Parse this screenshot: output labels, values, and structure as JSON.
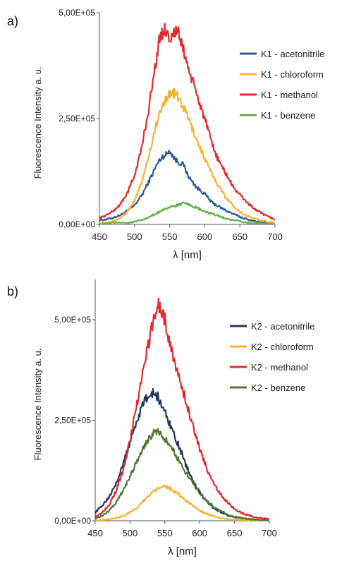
{
  "panels": [
    {
      "label": "a)"
    },
    {
      "label": "b)"
    }
  ],
  "chart_data": [
    {
      "type": "line",
      "title": "",
      "xlabel": "λ [nm]",
      "ylabel": "Fluorescence Intensity a. u.",
      "xlim": [
        450,
        700
      ],
      "ylim": [
        0,
        500000
      ],
      "x_ticks": [
        450,
        500,
        550,
        600,
        650,
        700
      ],
      "y_ticks": [
        "0,00E+00",
        "2,50E+05",
        "5,00E+05"
      ],
      "y_tick_values": [
        0,
        250000,
        500000
      ],
      "grid": false,
      "legend_position": "top-right",
      "series": [
        {
          "name": "K1 - acetonitrile",
          "color": "#2e5c93",
          "x": [
            450,
            460,
            470,
            480,
            490,
            500,
            510,
            520,
            530,
            535,
            540,
            545,
            550,
            555,
            560,
            565,
            570,
            575,
            580,
            590,
            600,
            610,
            620,
            630,
            640,
            650,
            660,
            670,
            680,
            690,
            700
          ],
          "y": [
            10000,
            12000,
            16000,
            22000,
            32000,
            45000,
            68000,
            100000,
            135000,
            150000,
            160000,
            165000,
            175000,
            160000,
            150000,
            145000,
            140000,
            120000,
            105000,
            85000,
            72000,
            52000,
            42000,
            33000,
            25000,
            18000,
            12000,
            8000,
            5000,
            3000,
            2000
          ]
        },
        {
          "name": "K1 - chloroform",
          "color": "#f5b533",
          "x": [
            450,
            460,
            470,
            480,
            490,
            500,
            510,
            520,
            530,
            540,
            545,
            550,
            555,
            560,
            565,
            570,
            575,
            580,
            590,
            600,
            610,
            620,
            630,
            640,
            650,
            660,
            670,
            680,
            690,
            700
          ],
          "y": [
            3000,
            5000,
            8000,
            15000,
            30000,
            55000,
            100000,
            160000,
            230000,
            280000,
            300000,
            308000,
            310000,
            305000,
            290000,
            275000,
            260000,
            235000,
            195000,
            155000,
            120000,
            90000,
            65000,
            45000,
            30000,
            20000,
            14000,
            9000,
            6000,
            4000
          ]
        },
        {
          "name": "K1 - methanol",
          "color": "#e32b2b",
          "x": [
            450,
            460,
            470,
            480,
            490,
            500,
            510,
            520,
            530,
            535,
            540,
            545,
            550,
            555,
            560,
            565,
            570,
            575,
            580,
            590,
            600,
            610,
            620,
            630,
            640,
            650,
            660,
            670,
            680,
            690,
            700
          ],
          "y": [
            15000,
            22000,
            32000,
            48000,
            75000,
            115000,
            180000,
            270000,
            380000,
            430000,
            455000,
            460000,
            440000,
            450000,
            458000,
            440000,
            410000,
            380000,
            350000,
            300000,
            250000,
            190000,
            150000,
            120000,
            90000,
            70000,
            52000,
            38000,
            27000,
            18000,
            12000
          ]
        },
        {
          "name": "K1 - benzene",
          "color": "#64b04a",
          "x": [
            450,
            460,
            470,
            480,
            490,
            500,
            510,
            520,
            530,
            540,
            550,
            560,
            570,
            580,
            590,
            600,
            610,
            620,
            630,
            640,
            650,
            660,
            670,
            680,
            690,
            700
          ],
          "y": [
            0,
            2000,
            4000,
            5000,
            3000,
            6000,
            10000,
            16000,
            25000,
            35000,
            40000,
            45000,
            50000,
            45000,
            38000,
            30000,
            25000,
            20000,
            14000,
            10000,
            7000,
            4000,
            3000,
            2000,
            1000,
            0
          ]
        }
      ]
    },
    {
      "type": "line",
      "title": "",
      "xlabel": "λ [nm]",
      "ylabel": "Fluorescence Intensity a. u.",
      "xlim": [
        450,
        700
      ],
      "ylim": [
        0,
        600000
      ],
      "x_ticks": [
        450,
        500,
        550,
        600,
        650,
        700
      ],
      "y_ticks": [
        "0,00E+00",
        "2,50E+05",
        "5,00E+05"
      ],
      "y_tick_values": [
        0,
        250000,
        500000
      ],
      "grid": false,
      "legend_position": "top-right",
      "series": [
        {
          "name": "K2 - acetonitrile",
          "color": "#1f3864",
          "x": [
            450,
            460,
            470,
            480,
            490,
            500,
            510,
            520,
            530,
            535,
            540,
            545,
            550,
            560,
            570,
            580,
            590,
            600,
            610,
            620,
            630,
            640,
            650,
            660,
            670,
            680,
            690,
            700
          ],
          "y": [
            20000,
            38000,
            60000,
            95000,
            140000,
            195000,
            250000,
            295000,
            318000,
            318000,
            308000,
            290000,
            270000,
            230000,
            185000,
            140000,
            100000,
            70000,
            48000,
            32000,
            22000,
            14000,
            9000,
            6000,
            4000,
            3000,
            2000,
            1000
          ]
        },
        {
          "name": "K2 - chloroform",
          "color": "#f5b533",
          "x": [
            450,
            460,
            470,
            480,
            490,
            500,
            510,
            520,
            530,
            540,
            545,
            550,
            560,
            570,
            580,
            590,
            600,
            610,
            620,
            630,
            640,
            650,
            660,
            670,
            680,
            690,
            700
          ],
          "y": [
            1000,
            2000,
            4000,
            7000,
            12000,
            20000,
            32000,
            50000,
            68000,
            82000,
            87000,
            85000,
            78000,
            65000,
            50000,
            38000,
            26000,
            17000,
            11000,
            7000,
            4000,
            2500,
            1500,
            1000,
            600,
            300,
            200
          ]
        },
        {
          "name": "K2 - methanol",
          "color": "#e32b2b",
          "x": [
            450,
            460,
            470,
            480,
            490,
            500,
            510,
            520,
            530,
            535,
            540,
            545,
            550,
            555,
            560,
            565,
            570,
            580,
            590,
            600,
            610,
            620,
            630,
            640,
            650,
            660,
            670,
            680,
            690,
            700
          ],
          "y": [
            10000,
            20000,
            40000,
            75000,
            125000,
            200000,
            290000,
            385000,
            470000,
            510000,
            540000,
            520000,
            500000,
            460000,
            420000,
            390000,
            360000,
            300000,
            235000,
            180000,
            130000,
            95000,
            65000,
            45000,
            30000,
            20000,
            13000,
            9000,
            6000,
            4000
          ]
        },
        {
          "name": "K2 - benzene",
          "color": "#4e7a30",
          "x": [
            450,
            460,
            470,
            480,
            490,
            500,
            510,
            520,
            530,
            535,
            540,
            545,
            550,
            560,
            570,
            580,
            590,
            600,
            610,
            620,
            630,
            640,
            650,
            660,
            670,
            680,
            690,
            700
          ],
          "y": [
            5000,
            12000,
            25000,
            45000,
            75000,
            110000,
            150000,
            185000,
            210000,
            220000,
            222000,
            215000,
            205000,
            180000,
            150000,
            120000,
            95000,
            70000,
            50000,
            35000,
            24000,
            16000,
            10000,
            7000,
            4000,
            3000,
            2000,
            1000
          ]
        }
      ]
    }
  ]
}
